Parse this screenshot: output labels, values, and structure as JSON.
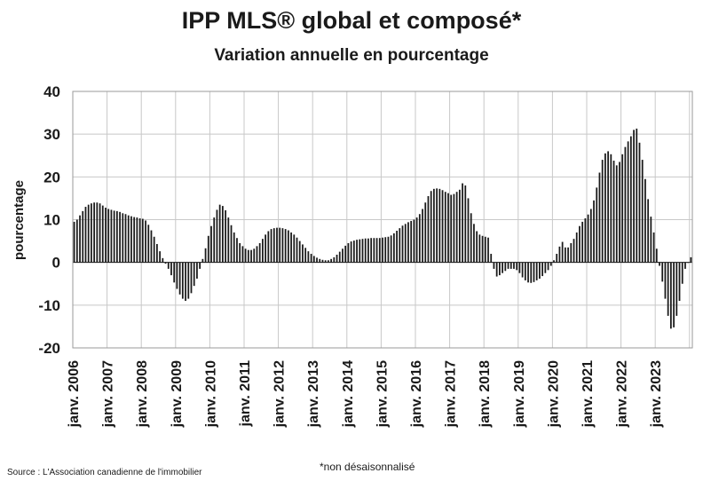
{
  "chart_data": {
    "type": "bar",
    "title": "IPP MLS® global et composé*",
    "subtitle": "Variation annuelle en pourcentage",
    "ylabel": "pourcentage",
    "xlabel": "",
    "ylim": [
      -20,
      40
    ],
    "yticks": [
      -20,
      -10,
      0,
      10,
      20,
      30,
      40
    ],
    "grid": true,
    "x_tick_labels": [
      "janv. 2006",
      "janv. 2007",
      "janv. 2008",
      "janv. 2009",
      "janv. 2010",
      "janv. 2011",
      "janv. 2012",
      "janv. 2013",
      "janv. 2014",
      "janv. 2015",
      "janv. 2016",
      "janv. 2017",
      "janv. 2018",
      "janv. 2019",
      "janv. 2020",
      "janv. 2021",
      "janv. 2022",
      "janv. 2023"
    ],
    "bar_color": "#1a1a1a",
    "series": [
      {
        "values": [
          9.5,
          10,
          11,
          12,
          13,
          13.5,
          13.8,
          14,
          14,
          13.8,
          13.3,
          12.8,
          12.5,
          12.3,
          12.1,
          12,
          11.8,
          11.5,
          11.3,
          11,
          10.8,
          10.6,
          10.5,
          10.3,
          10.2,
          9.8,
          8.8,
          7.5,
          6,
          4.3,
          2.6,
          1,
          -0.3,
          -1.5,
          -3,
          -4.7,
          -6.2,
          -7.5,
          -8.5,
          -9,
          -8.5,
          -7.2,
          -5.5,
          -3.8,
          -1.5,
          0.8,
          3.3,
          6.2,
          8.5,
          10.5,
          12.3,
          13.5,
          13.2,
          12.2,
          10.5,
          8.7,
          7,
          5.7,
          4.5,
          3.8,
          3.2,
          2.9,
          2.9,
          3.2,
          3.8,
          4.5,
          5.5,
          6.5,
          7.3,
          7.8,
          8,
          8.1,
          8.1,
          8,
          7.8,
          7.5,
          7,
          6.5,
          5.8,
          5,
          4.2,
          3.4,
          2.6,
          2,
          1.5,
          1.1,
          0.8,
          0.6,
          0.5,
          0.5,
          0.8,
          1.2,
          1.8,
          2.5,
          3.2,
          3.9,
          4.5,
          4.9,
          5.1,
          5.3,
          5.4,
          5.5,
          5.6,
          5.6,
          5.7,
          5.7,
          5.7,
          5.7,
          5.8,
          5.9,
          6,
          6.3,
          6.8,
          7.4,
          8,
          8.6,
          9,
          9.4,
          9.7,
          10,
          10.5,
          11.3,
          12.5,
          14,
          15.5,
          16.7,
          17.2,
          17.3,
          17.2,
          16.9,
          16.5,
          16.2,
          15.8,
          16,
          16.5,
          17,
          18.5,
          18,
          15,
          11.5,
          9,
          7.3,
          6.5,
          6.2,
          6,
          5.8,
          2,
          -1.5,
          -3.3,
          -3,
          -2.5,
          -2,
          -1.5,
          -1.5,
          -1.5,
          -1.8,
          -2.5,
          -3.5,
          -4.2,
          -4.7,
          -4.8,
          -4.6,
          -4.2,
          -3.8,
          -3.2,
          -2.5,
          -1.8,
          -0.8,
          0.5,
          2,
          3.7,
          4.8,
          3.5,
          3.5,
          4.5,
          5.5,
          7,
          8.5,
          9.5,
          10.3,
          11.2,
          12.5,
          14.5,
          17.5,
          21,
          24,
          25.5,
          26,
          25.3,
          23.8,
          22.7,
          23.5,
          25.3,
          27,
          28.3,
          29.5,
          31,
          31.3,
          28,
          24,
          19.5,
          14.8,
          10.7,
          7,
          3.2,
          -0.8,
          -4.5,
          -8.5,
          -12.5,
          -15.5,
          -15.2,
          -12.5,
          -9,
          -5,
          -1.5,
          0,
          1.2
        ]
      }
    ]
  },
  "source": "Source : L'Association canadienne de l'immobilier",
  "footnote": "*non désaisonnalisé"
}
